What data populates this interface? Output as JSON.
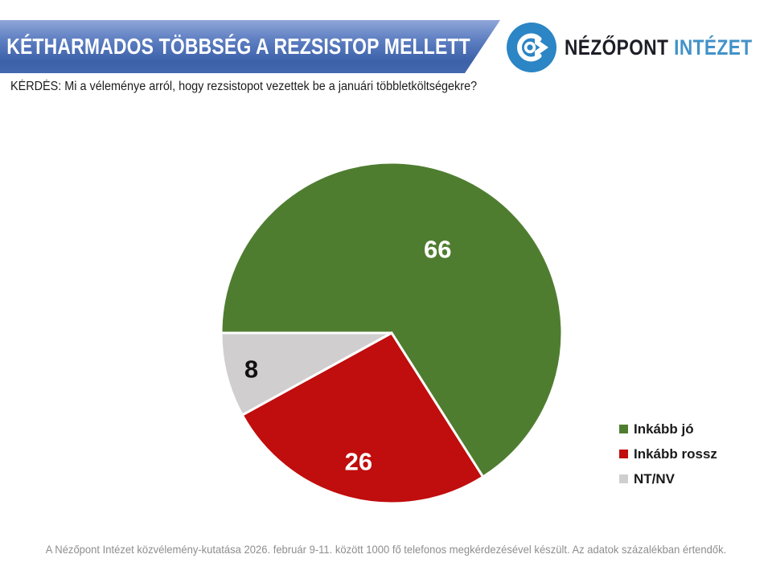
{
  "header": {
    "title": "KÉTHARMADOS TÖBBSÉG A REZSISTOP MELLETT"
  },
  "logo": {
    "icon": "nezopont-eye-icon",
    "name_primary": "NÉZŐPONT",
    "name_secondary": "INTÉZET",
    "icon_color": "#2c85c4"
  },
  "question": {
    "text": "KÉRDÉS: Mi a véleménye arról, hogy rezsistopot vezettek be a januári többletköltségekre?"
  },
  "chart_data": {
    "type": "pie",
    "title": "KÉTHARMADOS TÖBBSÉG A REZSISTOP MELLETT",
    "slices": [
      {
        "label": "Inkább jó",
        "value": 66,
        "color": "#4f7d30",
        "label_color": "#ffffff"
      },
      {
        "label": "Inkább rossz",
        "value": 26,
        "color": "#c00d0d",
        "label_color": "#ffffff"
      },
      {
        "label": "NT/NV",
        "value": 8,
        "color": "#d0cece",
        "label_color": "#111111"
      }
    ],
    "start_angle_deg": 270,
    "direction": "clockwise",
    "legend_position": "right",
    "data_labels": "values-inside",
    "layout_hints": {
      "center": [
        487,
        414
      ],
      "radius": 212,
      "label_radius_fraction": [
        0.56,
        0.78,
        0.85
      ],
      "separator_color": "#ffffff",
      "separator_width": 3
    }
  },
  "footer": {
    "text": "A Nézőpont Intézet közvélemény-kutatása 2026. február 9-11. között 1000 fő telefonos megkérdezésével készült. Az adatok százalékban értendők."
  },
  "colors": {
    "banner_gradient_top": "#8fa6d8",
    "banner_gradient_bottom": "#3c61a9",
    "banner_text": "#ffffff",
    "logo_blue": "#2c85c4",
    "footer_gray": "#8e8e8e"
  }
}
